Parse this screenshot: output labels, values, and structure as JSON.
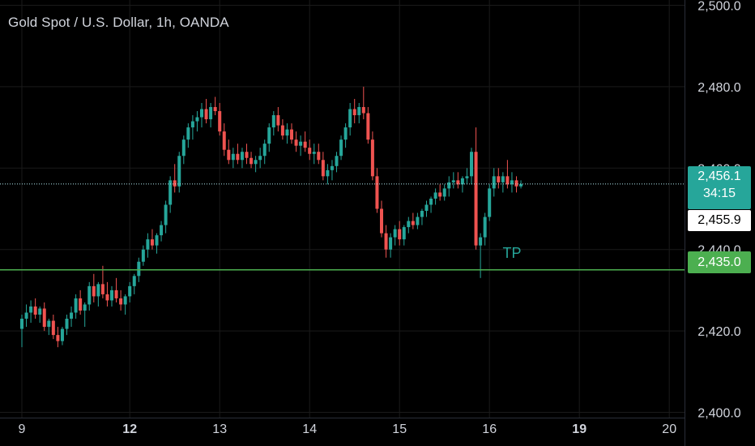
{
  "header": {
    "title": "Gold Spot / U.S. Dollar, 1h, OANDA"
  },
  "colors": {
    "background": "#000000",
    "up_candle": "#26a69a",
    "down_candle": "#ef5350",
    "tp_line": "#4caf50",
    "last_price_line": "#b2ebf2",
    "grid": "#1a1a1a",
    "axis_text": "#d1d4dc"
  },
  "price_axis": {
    "badges": {
      "last_price": "2,456.1",
      "countdown": "34:15",
      "second_price": "2,455.9",
      "tp_price": "2,435.0"
    }
  },
  "annotations": {
    "tp_label": "TP"
  },
  "chart_data": {
    "type": "candlestick",
    "title": "Gold Spot / U.S. Dollar, 1h, OANDA",
    "y_ticks": [
      "2,500.0",
      "2,480.0",
      "2,460.0",
      "2,440.0",
      "2,420.0",
      "2,400.0"
    ],
    "y_tick_values": [
      2500,
      2480,
      2460,
      2440,
      2420,
      2400
    ],
    "ylim": [
      2398.7,
      2501.3
    ],
    "x_ticks": [
      {
        "label": "9",
        "bold": false,
        "index": 0
      },
      {
        "label": "12",
        "bold": true,
        "index": 24
      },
      {
        "label": "13",
        "bold": false,
        "index": 44
      },
      {
        "label": "14",
        "bold": false,
        "index": 64
      },
      {
        "label": "15",
        "bold": false,
        "index": 84
      },
      {
        "label": "16",
        "bold": false,
        "index": 104
      },
      {
        "label": "19",
        "bold": true,
        "index": 124
      },
      {
        "label": "20",
        "bold": false,
        "index": 144
      }
    ],
    "horizontal_lines": [
      {
        "name": "TP",
        "value": 2435.0
      },
      {
        "name": "last",
        "value": 2456.1
      }
    ],
    "candles": [
      [
        2420.5,
        2424.0,
        2416.0,
        2423.0
      ],
      [
        2423.0,
        2426.5,
        2421.0,
        2424.5
      ],
      [
        2424.5,
        2427.5,
        2422.0,
        2426.0
      ],
      [
        2426.0,
        2428.0,
        2423.0,
        2424.0
      ],
      [
        2424.0,
        2426.0,
        2422.0,
        2425.5
      ],
      [
        2425.5,
        2427.0,
        2420.0,
        2421.0
      ],
      [
        2421.0,
        2423.0,
        2419.0,
        2422.5
      ],
      [
        2422.5,
        2424.0,
        2418.0,
        2419.0
      ],
      [
        2419.0,
        2421.0,
        2416.0,
        2417.5
      ],
      [
        2417.5,
        2421.0,
        2416.5,
        2420.5
      ],
      [
        2420.5,
        2424.0,
        2419.0,
        2423.0
      ],
      [
        2423.0,
        2426.0,
        2421.0,
        2424.5
      ],
      [
        2424.5,
        2429.0,
        2423.0,
        2428.0
      ],
      [
        2428.0,
        2430.0,
        2424.0,
        2425.0
      ],
      [
        2425.0,
        2427.0,
        2421.0,
        2426.5
      ],
      [
        2426.5,
        2432.0,
        2425.0,
        2431.0
      ],
      [
        2431.0,
        2434.0,
        2427.0,
        2428.5
      ],
      [
        2428.5,
        2432.0,
        2426.0,
        2431.5
      ],
      [
        2431.5,
        2436.0,
        2428.0,
        2429.0
      ],
      [
        2429.0,
        2432.0,
        2426.0,
        2427.5
      ],
      [
        2427.5,
        2431.0,
        2426.0,
        2430.0
      ],
      [
        2430.0,
        2433.0,
        2427.0,
        2428.0
      ],
      [
        2428.0,
        2430.0,
        2425.0,
        2426.5
      ],
      [
        2426.5,
        2429.0,
        2424.0,
        2428.5
      ],
      [
        2428.5,
        2432.0,
        2427.0,
        2431.0
      ],
      [
        2431.0,
        2434.0,
        2429.0,
        2433.5
      ],
      [
        2433.5,
        2438.0,
        2432.0,
        2437.0
      ],
      [
        2437.0,
        2441.0,
        2436.0,
        2440.0
      ],
      [
        2440.0,
        2444.0,
        2438.0,
        2442.5
      ],
      [
        2442.5,
        2445.0,
        2440.0,
        2441.0
      ],
      [
        2441.0,
        2444.0,
        2439.0,
        2443.5
      ],
      [
        2443.5,
        2447.0,
        2442.0,
        2446.0
      ],
      [
        2446.0,
        2452.0,
        2444.0,
        2451.0
      ],
      [
        2451.0,
        2458.0,
        2449.0,
        2457.0
      ],
      [
        2457.0,
        2461.0,
        2454.0,
        2455.5
      ],
      [
        2455.5,
        2464.0,
        2454.0,
        2463.0
      ],
      [
        2463.0,
        2468.0,
        2461.0,
        2467.0
      ],
      [
        2467.0,
        2471.0,
        2465.0,
        2470.0
      ],
      [
        2470.0,
        2473.0,
        2467.0,
        2471.5
      ],
      [
        2471.5,
        2474.0,
        2469.0,
        2472.5
      ],
      [
        2472.5,
        2476.0,
        2470.0,
        2474.5
      ],
      [
        2474.5,
        2477.0,
        2471.0,
        2472.0
      ],
      [
        2472.0,
        2476.0,
        2470.0,
        2475.0
      ],
      [
        2475.0,
        2477.5,
        2473.0,
        2474.0
      ],
      [
        2474.0,
        2476.0,
        2468.0,
        2469.0
      ],
      [
        2469.0,
        2471.0,
        2463.0,
        2464.5
      ],
      [
        2464.5,
        2467.0,
        2461.0,
        2462.0
      ],
      [
        2462.0,
        2465.0,
        2460.0,
        2463.5
      ],
      [
        2463.5,
        2466.0,
        2461.0,
        2462.0
      ],
      [
        2462.0,
        2465.0,
        2460.0,
        2464.0
      ],
      [
        2464.0,
        2466.0,
        2461.0,
        2462.5
      ],
      [
        2462.5,
        2464.0,
        2460.0,
        2461.0
      ],
      [
        2461.0,
        2463.0,
        2459.0,
        2462.0
      ],
      [
        2462.0,
        2465.0,
        2460.0,
        2463.0
      ],
      [
        2463.0,
        2467.0,
        2461.0,
        2466.0
      ],
      [
        2466.0,
        2471.0,
        2464.0,
        2470.0
      ],
      [
        2470.0,
        2474.0,
        2468.0,
        2473.0
      ],
      [
        2473.0,
        2475.0,
        2469.0,
        2470.5
      ],
      [
        2470.5,
        2472.0,
        2467.0,
        2468.0
      ],
      [
        2468.0,
        2471.0,
        2466.0,
        2469.5
      ],
      [
        2469.5,
        2471.0,
        2466.0,
        2467.0
      ],
      [
        2467.0,
        2469.0,
        2464.0,
        2465.5
      ],
      [
        2465.5,
        2468.0,
        2463.0,
        2466.5
      ],
      [
        2466.5,
        2469.0,
        2464.0,
        2465.0
      ],
      [
        2465.0,
        2467.0,
        2462.0,
        2463.5
      ],
      [
        2463.5,
        2466.0,
        2461.0,
        2464.0
      ],
      [
        2464.0,
        2466.0,
        2461.0,
        2462.0
      ],
      [
        2462.0,
        2464.0,
        2457.0,
        2458.0
      ],
      [
        2458.0,
        2461.0,
        2456.0,
        2459.5
      ],
      [
        2459.5,
        2462.0,
        2457.0,
        2460.5
      ],
      [
        2460.5,
        2464.0,
        2459.0,
        2463.0
      ],
      [
        2463.0,
        2468.0,
        2462.0,
        2467.0
      ],
      [
        2467.0,
        2471.0,
        2465.0,
        2470.0
      ],
      [
        2470.0,
        2476.0,
        2468.0,
        2474.5
      ],
      [
        2474.5,
        2477.0,
        2471.0,
        2473.0
      ],
      [
        2473.0,
        2476.0,
        2471.0,
        2475.0
      ],
      [
        2475.0,
        2480.0,
        2472.0,
        2473.5
      ],
      [
        2473.5,
        2475.0,
        2466.0,
        2467.0
      ],
      [
        2467.0,
        2469.0,
        2457.0,
        2458.0
      ],
      [
        2458.0,
        2460.0,
        2449.0,
        2450.0
      ],
      [
        2450.0,
        2452.0,
        2443.0,
        2444.0
      ],
      [
        2444.0,
        2446.0,
        2438.0,
        2440.0
      ],
      [
        2440.0,
        2444.0,
        2438.0,
        2443.0
      ],
      [
        2443.0,
        2446.0,
        2441.0,
        2445.0
      ],
      [
        2445.0,
        2447.0,
        2441.0,
        2442.5
      ],
      [
        2442.5,
        2446.0,
        2441.0,
        2445.5
      ],
      [
        2445.5,
        2448.0,
        2444.0,
        2447.0
      ],
      [
        2447.0,
        2449.0,
        2445.0,
        2446.0
      ],
      [
        2446.0,
        2449.0,
        2445.0,
        2448.0
      ],
      [
        2448.0,
        2450.0,
        2446.0,
        2449.5
      ],
      [
        2449.5,
        2452.0,
        2448.0,
        2451.0
      ],
      [
        2451.0,
        2453.0,
        2449.0,
        2452.5
      ],
      [
        2452.5,
        2455.0,
        2451.0,
        2454.0
      ],
      [
        2454.0,
        2456.0,
        2452.0,
        2453.0
      ],
      [
        2453.0,
        2456.0,
        2452.0,
        2455.0
      ],
      [
        2455.0,
        2458.0,
        2453.0,
        2456.5
      ],
      [
        2456.5,
        2459.0,
        2455.0,
        2457.0
      ],
      [
        2457.0,
        2459.0,
        2455.0,
        2456.0
      ],
      [
        2456.0,
        2458.0,
        2454.0,
        2457.5
      ],
      [
        2457.5,
        2460.0,
        2456.0,
        2458.0
      ],
      [
        2458.0,
        2465.0,
        2456.0,
        2464.0
      ],
      [
        2464.0,
        2470.0,
        2440.0,
        2441.0
      ],
      [
        2441.0,
        2444.0,
        2433.0,
        2443.0
      ],
      [
        2443.0,
        2449.0,
        2441.0,
        2448.0
      ],
      [
        2448.0,
        2456.0,
        2447.0,
        2455.0
      ],
      [
        2455.0,
        2460.0,
        2453.0,
        2458.0
      ],
      [
        2458.0,
        2460.0,
        2455.0,
        2456.5
      ],
      [
        2456.5,
        2459.0,
        2454.0,
        2458.0
      ],
      [
        2458.0,
        2462.0,
        2455.0,
        2456.0
      ],
      [
        2456.0,
        2459.0,
        2454.0,
        2457.0
      ],
      [
        2457.0,
        2458.0,
        2454.0,
        2455.5
      ],
      [
        2455.5,
        2457.0,
        2455.0,
        2456.1
      ]
    ]
  }
}
